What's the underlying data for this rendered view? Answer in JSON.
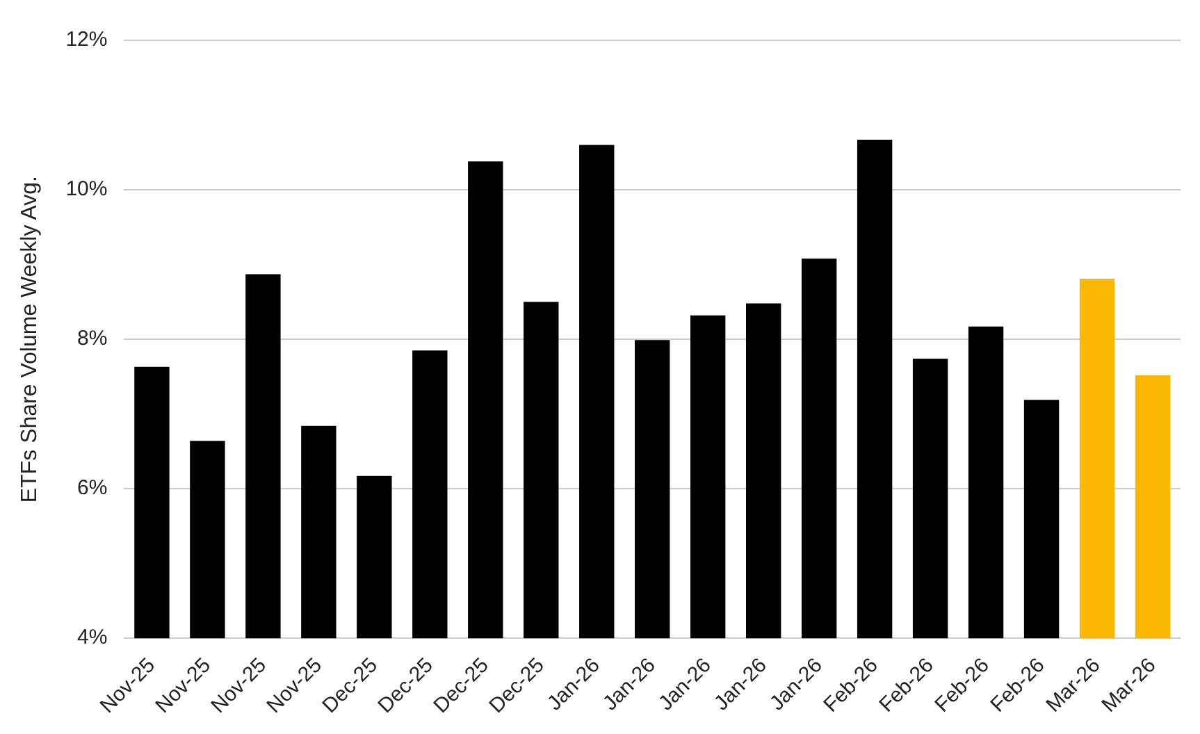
{
  "chart_data": {
    "type": "bar",
    "ylabel": "ETFs Share Volume Weekly Avg.",
    "categories": [
      "Nov-25",
      "Nov-25",
      "Nov-25",
      "Nov-25",
      "Dec-25",
      "Dec-25",
      "Dec-25",
      "Dec-25",
      "Jan-26",
      "Jan-26",
      "Jan-26",
      "Jan-26",
      "Jan-26",
      "Feb-26",
      "Feb-26",
      "Feb-26",
      "Feb-26",
      "Mar-26",
      "Mar-26"
    ],
    "values": [
      7.63,
      6.64,
      8.87,
      6.84,
      6.17,
      7.85,
      10.38,
      8.5,
      10.6,
      7.99,
      8.32,
      8.48,
      9.08,
      10.67,
      7.74,
      8.17,
      7.19,
      8.81,
      7.52
    ],
    "colors": [
      "#000000",
      "#000000",
      "#000000",
      "#000000",
      "#000000",
      "#000000",
      "#000000",
      "#000000",
      "#000000",
      "#000000",
      "#000000",
      "#000000",
      "#000000",
      "#000000",
      "#000000",
      "#000000",
      "#000000",
      "#fbb800",
      "#fbb800"
    ],
    "ylim": [
      4,
      12
    ],
    "yticks": [
      {
        "value": 4,
        "label": "4%"
      },
      {
        "value": 6,
        "label": "6%"
      },
      {
        "value": 8,
        "label": "8%"
      },
      {
        "value": 10,
        "label": "10%"
      },
      {
        "value": 12,
        "label": "12%"
      }
    ],
    "grid": "y",
    "legend": false
  }
}
